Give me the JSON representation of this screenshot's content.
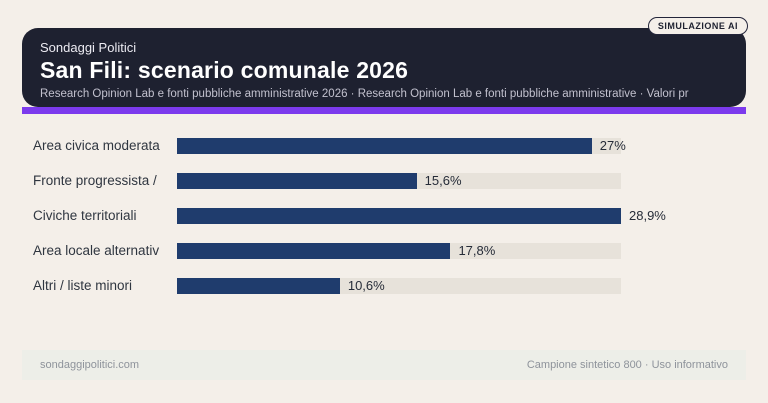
{
  "badge": {
    "label": "SIMULAZIONE AI"
  },
  "header": {
    "kicker": "Sondaggi Politici",
    "title": "San Fili: scenario comunale 2026",
    "subtitle": "Research Opinion Lab e fonti pubbliche amministrative 2026 · Research Opinion Lab e fonti pubbliche amministrative · Valori pr"
  },
  "chart_data": {
    "type": "bar",
    "orientation": "horizontal",
    "title": "San Fili: scenario comunale 2026",
    "categories": [
      "Area civica moderata",
      "Fronte progressista /",
      "Civiche territoriali",
      "Area locale alternativ",
      "Altri / liste minori"
    ],
    "values": [
      27,
      15.6,
      28.9,
      17.8,
      10.6
    ],
    "value_labels": [
      "27%",
      "15,6%",
      "28,9%",
      "17,8%",
      "10,6%"
    ],
    "axis_max": 28.9,
    "xlim": [
      0,
      28.9
    ],
    "grid": false,
    "legend": false,
    "value_label_position": "outside-end"
  },
  "footer": {
    "left": "sondaggipolitici.com",
    "right": "Campione sintetico 800 · Uso informativo"
  },
  "colors": {
    "page_bg": "#f4efe9",
    "card_bg": "#1e2130",
    "accent": "#7c3aed",
    "bar": "#1f3c6d",
    "track": "#e7e2da",
    "footer_bg": "#edeee8"
  }
}
